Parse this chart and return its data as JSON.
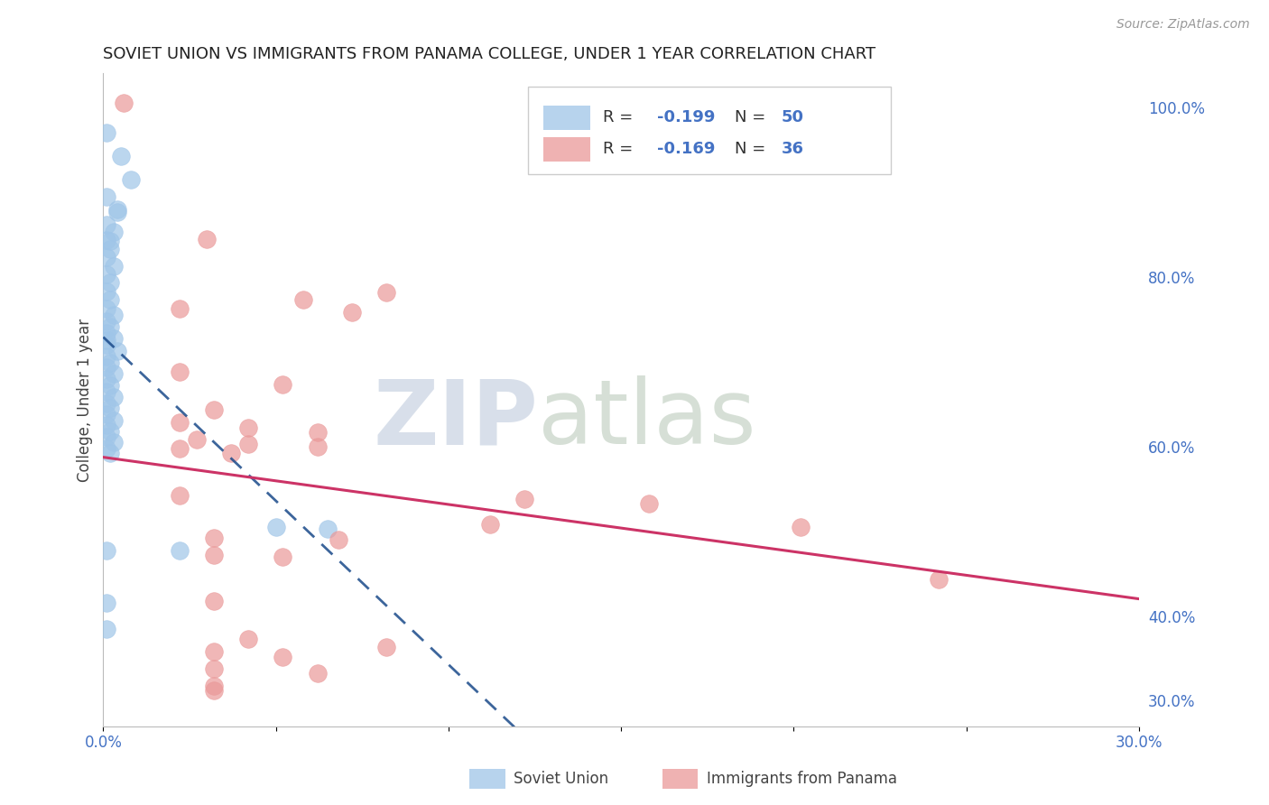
{
  "title": "SOVIET UNION VS IMMIGRANTS FROM PANAMA COLLEGE, UNDER 1 YEAR CORRELATION CHART",
  "source": "Source: ZipAtlas.com",
  "ylabel": "College, Under 1 year",
  "xmin": 0.0,
  "xmax": 0.3,
  "ymin": 0.27,
  "ymax": 1.04,
  "right_yticks": [
    0.3,
    0.4,
    0.6,
    0.8,
    1.0
  ],
  "right_yticklabels": [
    "30.0%",
    "40.0%",
    "60.0%",
    "80.0%",
    "100.0%"
  ],
  "bottom_xticks": [
    0.0,
    0.05,
    0.1,
    0.15,
    0.2,
    0.25,
    0.3
  ],
  "bottom_xticklabels": [
    "0.0%",
    "",
    "",
    "",
    "",
    "",
    "30.0%"
  ],
  "blue_r": -0.199,
  "blue_n": 50,
  "pink_r": -0.169,
  "pink_n": 36,
  "blue_color": "#9fc5e8",
  "pink_color": "#ea9999",
  "blue_line_color": "#1a4a8a",
  "pink_line_color": "#cc3366",
  "blue_scatter": [
    [
      0.001,
      0.97
    ],
    [
      0.005,
      0.942
    ],
    [
      0.008,
      0.915
    ],
    [
      0.001,
      0.895
    ],
    [
      0.004,
      0.876
    ],
    [
      0.001,
      0.862
    ],
    [
      0.003,
      0.853
    ],
    [
      0.001,
      0.843
    ],
    [
      0.002,
      0.833
    ],
    [
      0.001,
      0.823
    ],
    [
      0.003,
      0.813
    ],
    [
      0.001,
      0.803
    ],
    [
      0.002,
      0.793
    ],
    [
      0.001,
      0.783
    ],
    [
      0.002,
      0.773
    ],
    [
      0.001,
      0.763
    ],
    [
      0.003,
      0.755
    ],
    [
      0.001,
      0.748
    ],
    [
      0.002,
      0.741
    ],
    [
      0.001,
      0.734
    ],
    [
      0.003,
      0.727
    ],
    [
      0.001,
      0.72
    ],
    [
      0.004,
      0.713
    ],
    [
      0.001,
      0.706
    ],
    [
      0.002,
      0.699
    ],
    [
      0.001,
      0.693
    ],
    [
      0.003,
      0.686
    ],
    [
      0.001,
      0.679
    ],
    [
      0.002,
      0.672
    ],
    [
      0.001,
      0.665
    ],
    [
      0.003,
      0.658
    ],
    [
      0.001,
      0.651
    ],
    [
      0.002,
      0.645
    ],
    [
      0.001,
      0.638
    ],
    [
      0.003,
      0.631
    ],
    [
      0.001,
      0.625
    ],
    [
      0.002,
      0.618
    ],
    [
      0.001,
      0.611
    ],
    [
      0.003,
      0.605
    ],
    [
      0.001,
      0.598
    ],
    [
      0.002,
      0.592
    ],
    [
      0.05,
      0.505
    ],
    [
      0.065,
      0.503
    ],
    [
      0.001,
      0.477
    ],
    [
      0.022,
      0.477
    ],
    [
      0.001,
      0.415
    ],
    [
      0.001,
      0.385
    ],
    [
      0.002,
      0.842
    ],
    [
      0.004,
      0.88
    ],
    [
      0.001,
      0.725
    ]
  ],
  "pink_scatter": [
    [
      0.006,
      1.005
    ],
    [
      0.03,
      0.845
    ],
    [
      0.082,
      0.782
    ],
    [
      0.058,
      0.773
    ],
    [
      0.022,
      0.763
    ],
    [
      0.072,
      0.758
    ],
    [
      0.022,
      0.688
    ],
    [
      0.052,
      0.673
    ],
    [
      0.032,
      0.643
    ],
    [
      0.022,
      0.628
    ],
    [
      0.042,
      0.622
    ],
    [
      0.062,
      0.617
    ],
    [
      0.027,
      0.608
    ],
    [
      0.042,
      0.603
    ],
    [
      0.062,
      0.6
    ],
    [
      0.022,
      0.597
    ],
    [
      0.037,
      0.592
    ],
    [
      0.022,
      0.542
    ],
    [
      0.122,
      0.538
    ],
    [
      0.158,
      0.533
    ],
    [
      0.112,
      0.508
    ],
    [
      0.202,
      0.505
    ],
    [
      0.032,
      0.492
    ],
    [
      0.068,
      0.49
    ],
    [
      0.032,
      0.472
    ],
    [
      0.052,
      0.47
    ],
    [
      0.032,
      0.418
    ],
    [
      0.042,
      0.373
    ],
    [
      0.082,
      0.363
    ],
    [
      0.032,
      0.358
    ],
    [
      0.052,
      0.352
    ],
    [
      0.032,
      0.338
    ],
    [
      0.062,
      0.332
    ],
    [
      0.032,
      0.318
    ],
    [
      0.032,
      0.312
    ],
    [
      0.242,
      0.443
    ]
  ]
}
